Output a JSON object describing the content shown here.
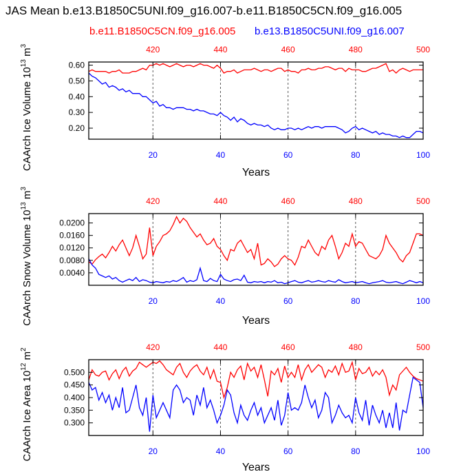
{
  "title": "JAS Mean b.e13.B1850C5UNI.f09_g16.007-b.e11.B1850C5CN.f09_g16.005",
  "legend": {
    "red_label": "b.e11.B1850C5CN.f09_g16.005",
    "blue_label": "b.e13.B1850C5UNI.f09_g16.007"
  },
  "colors": {
    "red": "#ff0000",
    "blue": "#0000ff",
    "grid": "#555555"
  },
  "chart_data": [
    {
      "type": "line",
      "ylabel_base": "CAArch Ice Volume 10",
      "ylabel_exp": "13",
      "ylabel_unit": " m",
      "ylabel_unit_exp": "3",
      "xlabel": "Years",
      "x_bottom_ticks": [
        "20",
        "40",
        "60",
        "80",
        "100"
      ],
      "x_top_ticks": [
        "420",
        "440",
        "460",
        "480",
        "500"
      ],
      "xlim": [
        1,
        100
      ],
      "ylim": [
        0.13,
        0.62
      ],
      "yticks": [
        0.2,
        0.3,
        0.4,
        0.5,
        0.6
      ],
      "ytick_labels": [
        "0.20",
        "0.30",
        "0.40",
        "0.50",
        "0.60"
      ],
      "grid_x": [
        20,
        40,
        60,
        80
      ],
      "series": [
        {
          "name": "b.e11.B1850C5CN.f09_g16.005",
          "color": "red",
          "values": [
            0.56,
            0.57,
            0.56,
            0.56,
            0.56,
            0.56,
            0.55,
            0.56,
            0.56,
            0.57,
            0.55,
            0.55,
            0.55,
            0.56,
            0.56,
            0.57,
            0.58,
            0.57,
            0.6,
            0.6,
            0.61,
            0.6,
            0.61,
            0.6,
            0.59,
            0.6,
            0.61,
            0.6,
            0.59,
            0.6,
            0.6,
            0.59,
            0.6,
            0.61,
            0.6,
            0.6,
            0.59,
            0.58,
            0.6,
            0.58,
            0.55,
            0.56,
            0.56,
            0.57,
            0.55,
            0.56,
            0.57,
            0.57,
            0.57,
            0.58,
            0.57,
            0.56,
            0.57,
            0.57,
            0.56,
            0.57,
            0.58,
            0.58,
            0.56,
            0.57,
            0.56,
            0.56,
            0.55,
            0.57,
            0.57,
            0.58,
            0.57,
            0.57,
            0.58,
            0.58,
            0.59,
            0.59,
            0.58,
            0.57,
            0.58,
            0.58,
            0.56,
            0.58,
            0.57,
            0.57,
            0.57,
            0.56,
            0.56,
            0.57,
            0.58,
            0.58,
            0.59,
            0.6,
            0.61,
            0.56,
            0.57,
            0.55,
            0.57,
            0.58,
            0.57,
            0.56,
            0.57,
            0.57,
            0.57,
            0.57
          ]
        },
        {
          "name": "b.e13.B1850C5UNI.f09_g16.007",
          "color": "blue",
          "values": [
            0.55,
            0.53,
            0.52,
            0.5,
            0.48,
            0.49,
            0.46,
            0.47,
            0.46,
            0.44,
            0.45,
            0.43,
            0.44,
            0.42,
            0.42,
            0.42,
            0.4,
            0.4,
            0.38,
            0.36,
            0.37,
            0.34,
            0.35,
            0.33,
            0.33,
            0.32,
            0.33,
            0.33,
            0.33,
            0.32,
            0.32,
            0.31,
            0.32,
            0.31,
            0.31,
            0.3,
            0.29,
            0.29,
            0.28,
            0.3,
            0.28,
            0.27,
            0.25,
            0.27,
            0.24,
            0.26,
            0.25,
            0.23,
            0.22,
            0.23,
            0.22,
            0.22,
            0.21,
            0.22,
            0.2,
            0.19,
            0.2,
            0.19,
            0.19,
            0.2,
            0.2,
            0.19,
            0.2,
            0.19,
            0.2,
            0.21,
            0.2,
            0.21,
            0.21,
            0.2,
            0.21,
            0.21,
            0.21,
            0.21,
            0.2,
            0.19,
            0.17,
            0.18,
            0.2,
            0.21,
            0.19,
            0.2,
            0.19,
            0.18,
            0.17,
            0.18,
            0.16,
            0.17,
            0.16,
            0.16,
            0.15,
            0.15,
            0.14,
            0.15,
            0.14,
            0.14,
            0.16,
            0.18,
            0.18,
            0.17
          ]
        }
      ]
    },
    {
      "type": "line",
      "ylabel_base": "CAArch Snow Volume 10",
      "ylabel_exp": "13",
      "ylabel_unit": " m",
      "ylabel_unit_exp": "3",
      "xlabel": "Years",
      "x_bottom_ticks": [
        "20",
        "40",
        "60",
        "80",
        "100"
      ],
      "x_top_ticks": [
        "420",
        "440",
        "460",
        "480",
        "500"
      ],
      "xlim": [
        1,
        100
      ],
      "ylim": [
        0.0,
        0.023
      ],
      "yticks": [
        0.004,
        0.008,
        0.012,
        0.016,
        0.02
      ],
      "ytick_labels": [
        "0.0040",
        "0.0080",
        "0.0120",
        "0.0160",
        "0.0200"
      ],
      "grid_x": [
        20,
        40,
        60,
        80
      ],
      "series": [
        {
          "name": "b.e11.B1850C5CN.f09_g16.005",
          "color": "red",
          "values": [
            0.0075,
            0.0068,
            0.0082,
            0.0092,
            0.01,
            0.0088,
            0.0105,
            0.0125,
            0.011,
            0.013,
            0.0145,
            0.012,
            0.0095,
            0.012,
            0.016,
            0.0125,
            0.0085,
            0.01,
            0.0185,
            0.0095,
            0.0125,
            0.014,
            0.016,
            0.0165,
            0.0175,
            0.0195,
            0.022,
            0.02,
            0.0215,
            0.0205,
            0.0185,
            0.017,
            0.0155,
            0.0165,
            0.0145,
            0.013,
            0.0135,
            0.015,
            0.0125,
            0.0115,
            0.0095,
            0.008,
            0.0115,
            0.011,
            0.0135,
            0.0145,
            0.0125,
            0.0105,
            0.0115,
            0.0085,
            0.0135,
            0.0065,
            0.007,
            0.0085,
            0.0075,
            0.006,
            0.0068,
            0.0085,
            0.0095,
            0.0085,
            0.008,
            0.0065,
            0.009,
            0.0125,
            0.012,
            0.0145,
            0.0125,
            0.0105,
            0.0095,
            0.0125,
            0.0115,
            0.0145,
            0.016,
            0.0125,
            0.0085,
            0.0105,
            0.0135,
            0.0125,
            0.0165,
            0.0125,
            0.014,
            0.0135,
            0.0115,
            0.0095,
            0.009,
            0.0085,
            0.0095,
            0.0115,
            0.016,
            0.0135,
            0.012,
            0.0105,
            0.0085,
            0.0075,
            0.0095,
            0.0105,
            0.0135,
            0.0165,
            0.0165,
            0.016
          ]
        },
        {
          "name": "b.e13.B1850C5UNI.f09_g16.007",
          "color": "blue",
          "values": [
            0.0085,
            0.0065,
            0.0055,
            0.0035,
            0.003,
            0.0025,
            0.003,
            0.002,
            0.0025,
            0.0015,
            0.001,
            0.0015,
            0.002,
            0.0015,
            0.0025,
            0.0012,
            0.0018,
            0.0015,
            0.001,
            0.0008,
            0.0012,
            0.001,
            0.0008,
            0.0012,
            0.001,
            0.0015,
            0.0012,
            0.0018,
            0.0025,
            0.001,
            0.0015,
            0.0012,
            0.0018,
            0.0055,
            0.0015,
            0.0012,
            0.0022,
            0.0015,
            0.0012,
            0.0035,
            0.002,
            0.0015,
            0.0012,
            0.0018,
            0.002,
            0.0015,
            0.0032,
            0.001,
            0.0008,
            0.0012,
            0.001,
            0.0012,
            0.0008,
            0.0012,
            0.001,
            0.0015,
            0.0008,
            0.001,
            0.0005,
            0.0008,
            0.0012,
            0.0015,
            0.001,
            0.0008,
            0.0012,
            0.0015,
            0.001,
            0.0012,
            0.0015,
            0.0012,
            0.001,
            0.0015,
            0.0012,
            0.001,
            0.0018,
            0.0012,
            0.0008,
            0.001,
            0.0012,
            0.0008,
            0.001,
            0.0012,
            0.0008,
            0.0005,
            0.0008,
            0.001,
            0.0012,
            0.0015,
            0.001,
            0.0008,
            0.001,
            0.0012,
            0.0008,
            0.0005,
            0.001,
            0.0015,
            0.0012,
            0.0008,
            0.0012,
            0.0008
          ]
        }
      ]
    },
    {
      "type": "line",
      "ylabel_base": "CAArch Ice Area 10",
      "ylabel_exp": "12",
      "ylabel_unit": " m",
      "ylabel_unit_exp": "2",
      "xlabel": "Years",
      "x_bottom_ticks": [
        "20",
        "40",
        "60",
        "80",
        "100"
      ],
      "x_top_ticks": [
        "420",
        "440",
        "460",
        "480",
        "500"
      ],
      "xlim": [
        1,
        100
      ],
      "ylim": [
        0.25,
        0.55
      ],
      "yticks": [
        0.3,
        0.35,
        0.4,
        0.45,
        0.5
      ],
      "ytick_labels": [
        "0.300",
        "0.350",
        "0.400",
        "0.450",
        "0.500"
      ],
      "grid_x": [
        20,
        40,
        60,
        80
      ],
      "series": [
        {
          "name": "b.e11.B1850C5CN.f09_g16.005",
          "color": "red",
          "values": [
            0.47,
            0.51,
            0.49,
            0.485,
            0.5,
            0.505,
            0.47,
            0.495,
            0.51,
            0.475,
            0.505,
            0.52,
            0.485,
            0.505,
            0.515,
            0.54,
            0.53,
            0.52,
            0.53,
            0.54,
            0.535,
            0.545,
            0.53,
            0.51,
            0.5,
            0.49,
            0.52,
            0.535,
            0.5,
            0.48,
            0.505,
            0.52,
            0.53,
            0.505,
            0.49,
            0.52,
            0.475,
            0.51,
            0.465,
            0.46,
            0.4,
            0.44,
            0.5,
            0.48,
            0.51,
            0.525,
            0.47,
            0.535,
            0.505,
            0.52,
            0.48,
            0.53,
            0.47,
            0.405,
            0.505,
            0.49,
            0.515,
            0.46,
            0.525,
            0.48,
            0.5,
            0.48,
            0.53,
            0.47,
            0.51,
            0.53,
            0.5,
            0.515,
            0.53,
            0.52,
            0.48,
            0.51,
            0.5,
            0.525,
            0.49,
            0.535,
            0.5,
            0.505,
            0.54,
            0.47,
            0.515,
            0.495,
            0.5,
            0.52,
            0.485,
            0.505,
            0.49,
            0.51,
            0.48,
            0.41,
            0.45,
            0.43,
            0.49,
            0.505,
            0.52,
            0.5,
            0.485,
            0.475,
            0.47,
            0.465
          ]
        },
        {
          "name": "b.e13.B1850C5UNI.f09_g16.007",
          "color": "blue",
          "values": [
            0.46,
            0.43,
            0.44,
            0.39,
            0.42,
            0.38,
            0.41,
            0.35,
            0.4,
            0.36,
            0.44,
            0.34,
            0.35,
            0.4,
            0.45,
            0.36,
            0.33,
            0.4,
            0.265,
            0.41,
            0.32,
            0.35,
            0.38,
            0.35,
            0.32,
            0.43,
            0.45,
            0.43,
            0.38,
            0.4,
            0.39,
            0.33,
            0.41,
            0.37,
            0.44,
            0.36,
            0.39,
            0.35,
            0.3,
            0.33,
            0.37,
            0.43,
            0.41,
            0.34,
            0.3,
            0.37,
            0.33,
            0.31,
            0.35,
            0.38,
            0.33,
            0.36,
            0.3,
            0.33,
            0.36,
            0.31,
            0.39,
            0.29,
            0.33,
            0.42,
            0.35,
            0.36,
            0.35,
            0.38,
            0.45,
            0.4,
            0.36,
            0.39,
            0.32,
            0.35,
            0.42,
            0.4,
            0.3,
            0.33,
            0.37,
            0.34,
            0.32,
            0.33,
            0.3,
            0.4,
            0.34,
            0.31,
            0.39,
            0.29,
            0.37,
            0.33,
            0.3,
            0.35,
            0.28,
            0.34,
            0.28,
            0.38,
            0.27,
            0.35,
            0.34,
            0.41,
            0.48,
            0.47,
            0.46,
            0.36
          ]
        }
      ]
    }
  ]
}
